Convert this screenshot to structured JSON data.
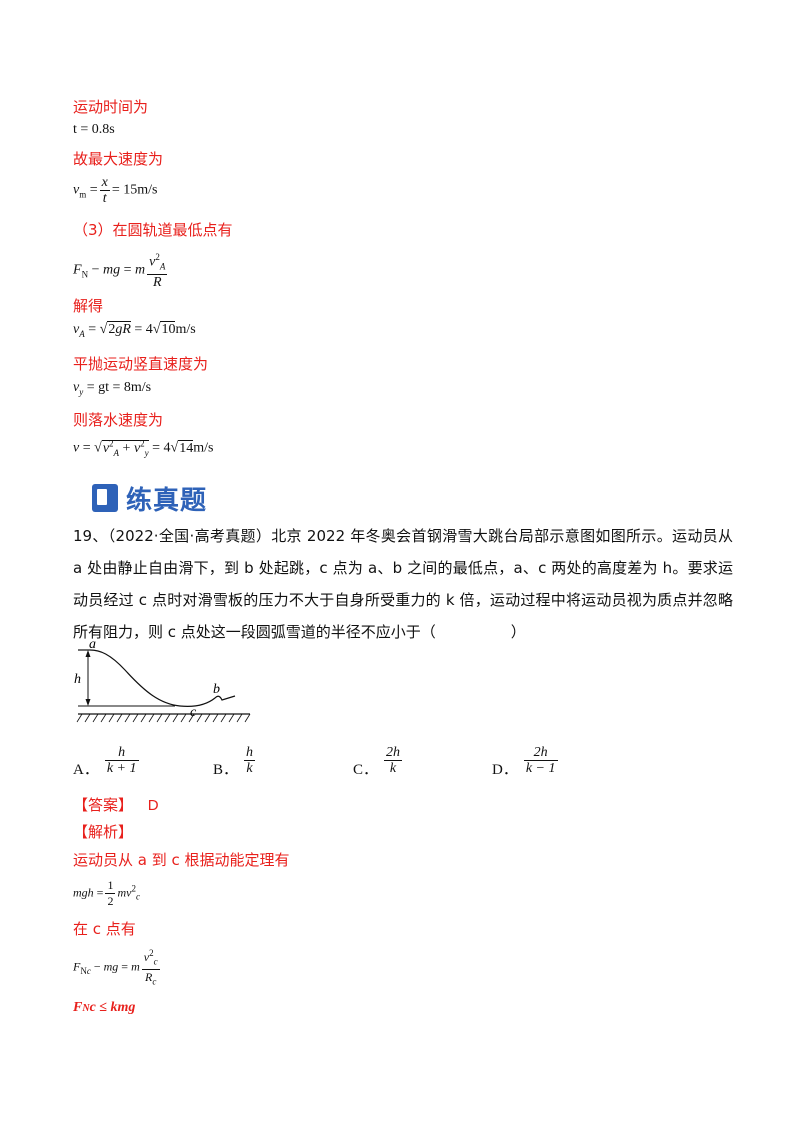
{
  "lines": {
    "time_label": "运动时间为",
    "time_eq": "t = 0.8s",
    "maxv_label": "故最大速度为",
    "maxv_eq": "= 15m/s",
    "part3_label": "（3）在圆轨道最低点有",
    "solve_label": "解得",
    "va_eq": "= 4",
    "va_unit": "m/s",
    "vy_label": "平抛运动竖直速度为",
    "vy_eq": "= gt = 8m/s",
    "land_label": "则落水速度为",
    "land_unit": "m/s"
  },
  "section": {
    "title": "练真题"
  },
  "question": {
    "text": "19、（2022·全国·高考真题）北京 2022 年冬奥会首钢滑雪大跳台局部示意图如图所示。运动员从 a 处由静止自由滑下，到 b 处起跳，c 点为 a、b 之间的最低点，a、c 两处的高度差为 h。要求运动员经过 c 点时对滑雪板的压力不大于自身所受重力的 k 倍，运动过程中将运动员视为质点并忽略所有阻力，则 c 点处这一段圆弧雪道的半径不应小于（　　　　　）",
    "figure_labels": {
      "a": "a",
      "b": "b",
      "c": "c",
      "h": "h"
    },
    "options": [
      {
        "label": "A．",
        "num": "h",
        "den": "k + 1"
      },
      {
        "label": "B．",
        "num": "h",
        "den": "k"
      },
      {
        "label": "C．",
        "num": "2h",
        "den": "k"
      },
      {
        "label": "D．",
        "num": "2h",
        "den": "k − 1"
      }
    ]
  },
  "answer": {
    "label": "【答案】",
    "value": "D"
  },
  "analysis": {
    "label": "【解析】",
    "line1": "运动员从 a 到 c 根据动能定理有",
    "line2": "在 c 点有",
    "ineq": "≤ kmg"
  }
}
